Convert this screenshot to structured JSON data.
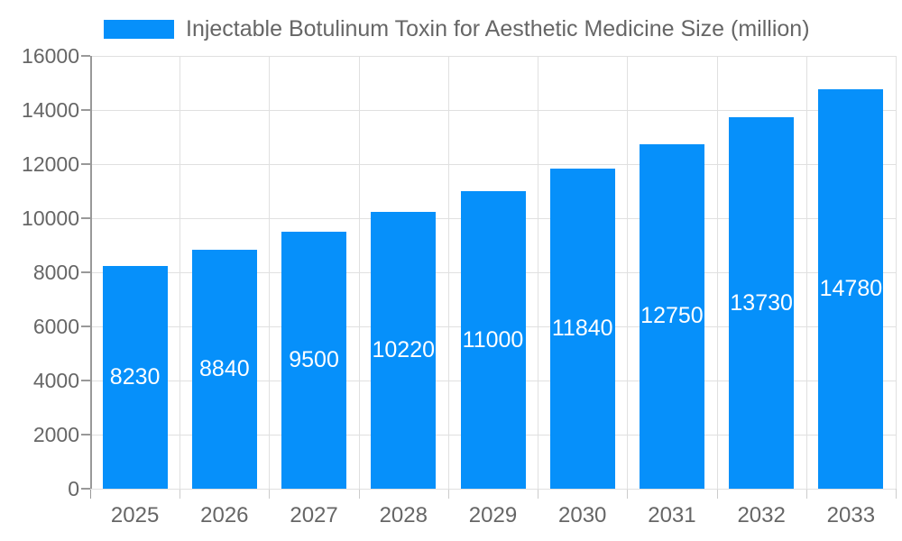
{
  "legend": {
    "items": [
      {
        "label": "Injectable Botulinum Toxin for Aesthetic Medicine Size (million)",
        "color": "#0690FA"
      }
    ],
    "position": "top"
  },
  "chart_data": {
    "type": "bar",
    "title": "Injectable Botulinum Toxin for Aesthetic Medicine Size (million)",
    "categories": [
      "2025",
      "2026",
      "2027",
      "2028",
      "2029",
      "2030",
      "2031",
      "2032",
      "2033"
    ],
    "series": [
      {
        "name": "Injectable Botulinum Toxin for Aesthetic Medicine Size (million)",
        "values": [
          8230,
          8840,
          9500,
          10220,
          11000,
          11840,
          12750,
          13730,
          14780
        ]
      }
    ],
    "value_labels_shown": true,
    "value_label_position": "inside-center",
    "xlabel": "",
    "ylabel": "",
    "ylim": [
      0,
      16000
    ],
    "yticks": [
      0,
      2000,
      4000,
      6000,
      8000,
      10000,
      12000,
      14000,
      16000
    ],
    "grid": true,
    "legend_position": "top",
    "colors": {
      "bar": "#0690FA",
      "gridline": "#E0E0E0",
      "y_axis_line": "#999999",
      "x_axis_line": "#E0E0E0",
      "x_tick": "#CCCCCC",
      "axis_text": "#666666",
      "value_text": "#FFFFFF",
      "background": "#FFFFFF"
    }
  }
}
